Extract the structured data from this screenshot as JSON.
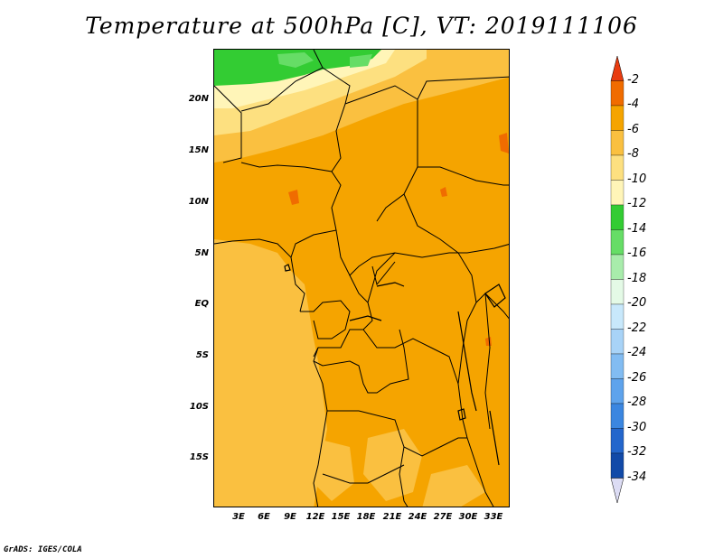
{
  "title": "Temperature at 500hPa [C], VT: 2019111106",
  "credit": "GrADS: IGES/COLA",
  "lat_ticks": [
    "20N",
    "15N",
    "10N",
    "5N",
    "EQ",
    "5S",
    "10S",
    "15S"
  ],
  "lon_ticks": [
    "3E",
    "6E",
    "9E",
    "12E",
    "15E",
    "18E",
    "21E",
    "24E",
    "27E",
    "30E",
    "33E"
  ],
  "colorbar": {
    "labels": [
      "-2",
      "-4",
      "-6",
      "-8",
      "-10",
      "-12",
      "-14",
      "-16",
      "-18",
      "-20",
      "-22",
      "-24",
      "-26",
      "-28",
      "-30",
      "-32",
      "-34"
    ],
    "colors": [
      "#e83c10",
      "#f06c00",
      "#f5a400",
      "#fac040",
      "#fde080",
      "#fff5b8",
      "#33cc33",
      "#66dd66",
      "#a8ecab",
      "#e4fae6",
      "#c8e8fb",
      "#a8d3f7",
      "#82bcf2",
      "#5ea3ec",
      "#3b86e0",
      "#2366cc",
      "#124aa8",
      "#0b1f70"
    ],
    "top_color": "#e83c10",
    "bottom_color": "#dcdcf4"
  },
  "map_colors": {
    "orange": "#f5a400",
    "light_orange": "#fac040",
    "yellow": "#fde080",
    "pale_yellow": "#fff5b8",
    "green": "#33cc33",
    "light_green": "#66dd66",
    "red_orange": "#f06c00"
  }
}
